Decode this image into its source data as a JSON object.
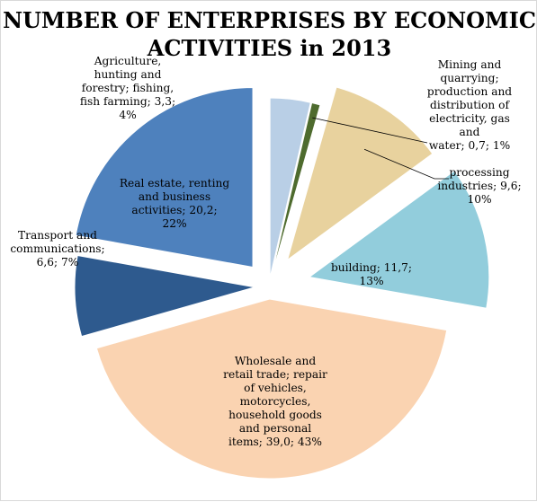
{
  "chart_data": {
    "type": "pie",
    "title": "NUMBER OF ENTERPRISES BY ECONOMIC ACTIVITIES in 2013",
    "exploded": true,
    "slices": [
      {
        "name": "Agriculture, hunting and forestry; fishing, fish farming",
        "value": 3.3,
        "percent": 4,
        "color": "#b9cfe6",
        "label": "Agriculture,\nhunting and\nforestry; fishing,\nfish farming; 3,3;\n4%"
      },
      {
        "name": "Mining and quarrying; production and distribution of electricity, gas and water",
        "value": 0.7,
        "percent": 1,
        "color": "#4e6b2e",
        "label": "Mining and\nquarrying;\nproduction and\ndistribution of\nelectricity, gas and\nwater; 0,7; 1%"
      },
      {
        "name": "processing industries",
        "value": 9.6,
        "percent": 10,
        "color": "#e8d29e",
        "label": "processing\nindustries; 9,6;\n10%"
      },
      {
        "name": "building",
        "value": 11.7,
        "percent": 13,
        "color": "#92cddc",
        "label": "building; 11,7;\n13%"
      },
      {
        "name": "Wholesale and retail trade; repair of vehicles, motorcycles, household goods and personal items",
        "value": 39.0,
        "percent": 43,
        "color": "#fad3b1",
        "label": "Wholesale and\nretail trade;  repair\nof vehicles,\nmotorcycles,\nhousehold goods\nand personal\nitems; 39,0; 43%"
      },
      {
        "name": "Transport and communications",
        "value": 6.6,
        "percent": 7,
        "color": "#2e5a8e",
        "label": "Transport and\ncommunications;\n6,6; 7%"
      },
      {
        "name": "Real estate, renting and business activities",
        "value": 20.2,
        "percent": 22,
        "color": "#4e81bd",
        "label": "Real estate, renting\nand business\nactivities; 20,2;\n22%"
      }
    ]
  }
}
